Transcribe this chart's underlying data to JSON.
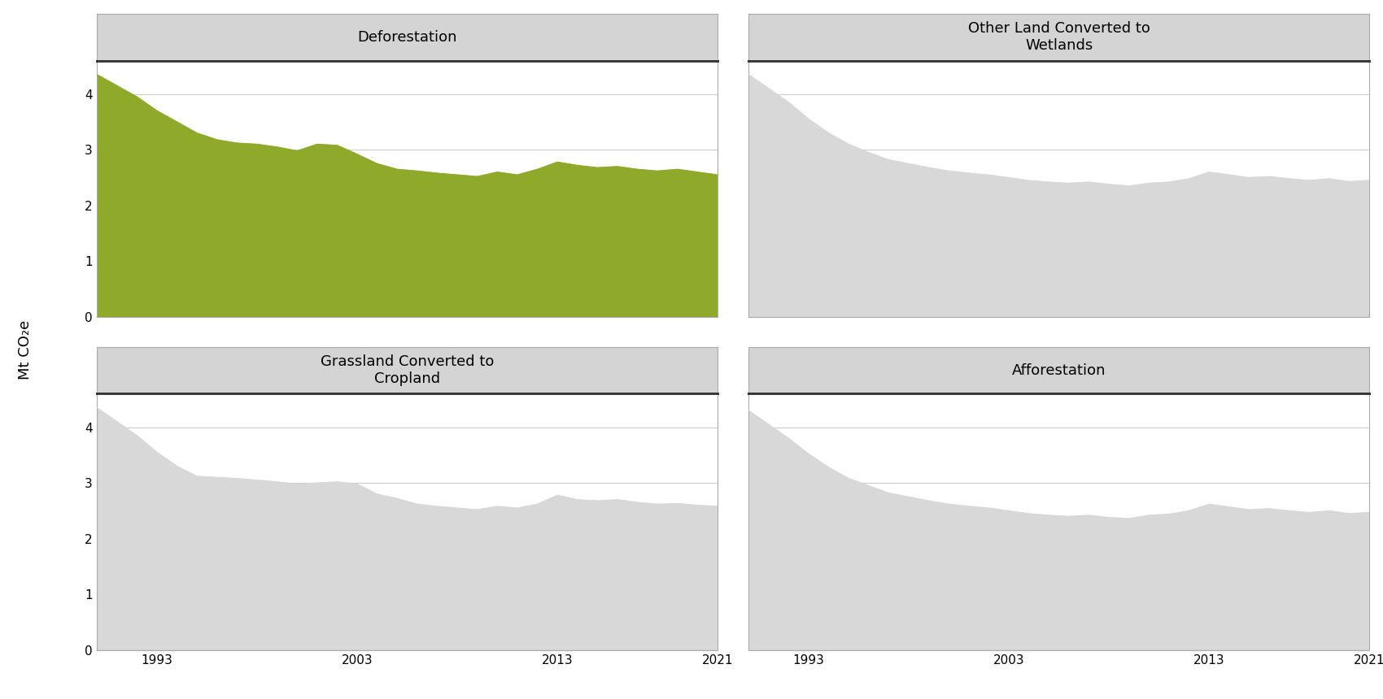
{
  "years": [
    1990,
    1991,
    1992,
    1993,
    1994,
    1995,
    1996,
    1997,
    1998,
    1999,
    2000,
    2001,
    2002,
    2003,
    2004,
    2005,
    2006,
    2007,
    2008,
    2009,
    2010,
    2011,
    2012,
    2013,
    2014,
    2015,
    2016,
    2017,
    2018,
    2019,
    2020,
    2021
  ],
  "deforestation": [
    4.35,
    4.15,
    3.95,
    3.7,
    3.5,
    3.3,
    3.18,
    3.12,
    3.1,
    3.05,
    2.98,
    3.1,
    3.08,
    2.92,
    2.75,
    2.65,
    2.62,
    2.58,
    2.55,
    2.52,
    2.6,
    2.55,
    2.65,
    2.78,
    2.72,
    2.68,
    2.7,
    2.65,
    2.62,
    2.65,
    2.6,
    2.55
  ],
  "wetlands": [
    4.35,
    4.1,
    3.85,
    3.55,
    3.3,
    3.1,
    2.95,
    2.82,
    2.75,
    2.68,
    2.62,
    2.58,
    2.55,
    2.5,
    2.45,
    2.42,
    2.4,
    2.42,
    2.38,
    2.35,
    2.4,
    2.42,
    2.48,
    2.6,
    2.55,
    2.5,
    2.52,
    2.48,
    2.45,
    2.48,
    2.43,
    2.45
  ],
  "grassland": [
    4.35,
    4.1,
    3.85,
    3.55,
    3.3,
    3.12,
    3.1,
    3.08,
    3.05,
    3.02,
    2.98,
    3.0,
    3.02,
    2.98,
    2.8,
    2.72,
    2.62,
    2.58,
    2.55,
    2.52,
    2.58,
    2.55,
    2.62,
    2.78,
    2.7,
    2.68,
    2.7,
    2.65,
    2.62,
    2.63,
    2.6,
    2.58
  ],
  "afforestation": [
    4.3,
    4.05,
    3.8,
    3.52,
    3.28,
    3.08,
    2.95,
    2.82,
    2.75,
    2.68,
    2.62,
    2.58,
    2.55,
    2.5,
    2.45,
    2.42,
    2.4,
    2.42,
    2.38,
    2.36,
    2.42,
    2.44,
    2.5,
    2.62,
    2.57,
    2.52,
    2.54,
    2.5,
    2.47,
    2.5,
    2.45,
    2.47
  ],
  "active_color": "#8faa2b",
  "inactive_fill": "#d8d8d8",
  "title_bg_color": "#d4d4d4",
  "panel_bg_color": "#ffffff",
  "y_max": 4.6,
  "y_ticks": [
    0,
    1,
    2,
    3,
    4
  ],
  "x_ticks": [
    1993,
    2003,
    2013,
    2021
  ],
  "ylabel": "Mt CO₂e",
  "titles": [
    "Deforestation",
    "Other Land Converted to\nWetlands",
    "Grassland Converted to\nCropland",
    "Afforestation"
  ],
  "active_panel": 0,
  "grid_color": "#cccccc",
  "spine_color": "#aaaaaa",
  "top_spine_color": "#333333",
  "top_spine_lw": 2.0
}
